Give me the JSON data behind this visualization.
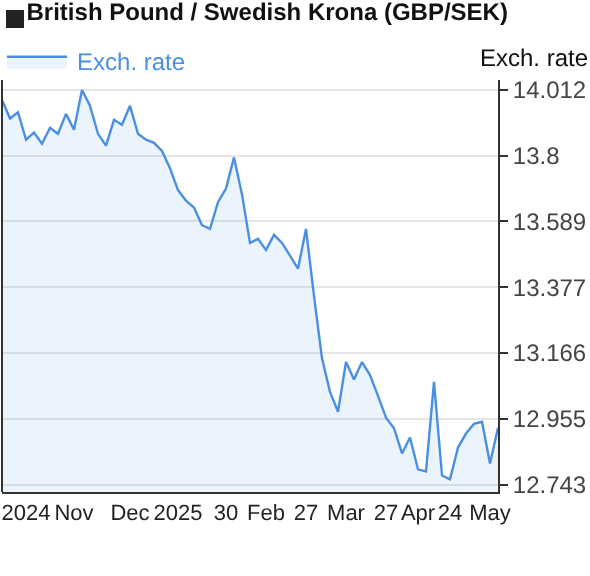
{
  "chart_data": {
    "type": "area",
    "title": "British Pound / Swedish Krona (GBP/SEK)",
    "ylabel": "Exch. rate",
    "categories": [
      null,
      null,
      null,
      "2024",
      null,
      null,
      null,
      null,
      null,
      "Nov",
      null,
      null,
      null,
      null,
      null,
      null,
      "Dec",
      null,
      null,
      null,
      null,
      null,
      "2025",
      null,
      null,
      null,
      null,
      null,
      "30",
      null,
      null,
      null,
      null,
      "Feb",
      null,
      null,
      null,
      null,
      "27",
      null,
      null,
      null,
      null,
      "Mar",
      null,
      null,
      null,
      null,
      "27",
      null,
      null,
      null,
      "Apr",
      null,
      null,
      null,
      "24",
      null,
      null,
      null,
      null,
      "May",
      null
    ],
    "series": [
      {
        "name": "Exch. rate",
        "color": "#4a90e2",
        "values": [
          13.98,
          13.92,
          13.94,
          13.852,
          13.875,
          13.839,
          13.89,
          13.871,
          13.935,
          13.884,
          14.012,
          13.961,
          13.871,
          13.833,
          13.916,
          13.9,
          13.961,
          13.871,
          13.852,
          13.842,
          13.816,
          13.76,
          13.69,
          13.656,
          13.634,
          13.577,
          13.565,
          13.651,
          13.695,
          13.795,
          13.676,
          13.52,
          13.533,
          13.497,
          13.546,
          13.52,
          13.479,
          13.437,
          13.565,
          13.35,
          13.149,
          13.041,
          12.977,
          13.137,
          13.081,
          13.137,
          13.095,
          13.028,
          12.958,
          12.924,
          12.843,
          12.894,
          12.792,
          12.785,
          13.073,
          12.772,
          12.76,
          12.862,
          12.907,
          12.938,
          12.945,
          12.811,
          12.926
        ]
      }
    ],
    "ylim": [
      12.719,
      14.044
    ],
    "yticks": [
      12.743,
      12.955,
      13.166,
      13.377,
      13.589,
      13.8,
      14.012
    ],
    "grid": "y",
    "legend": "top left"
  }
}
